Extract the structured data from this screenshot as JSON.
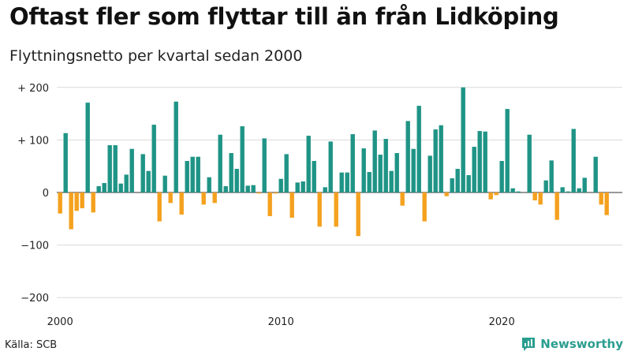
{
  "header": {
    "title": "Oftast fler som flyttar till än från Lidköping",
    "subtitle": "Flyttningsnetto per kvartal sedan 2000"
  },
  "footer": {
    "source": "Källa: SCB",
    "brand": "Newsworthy"
  },
  "colors": {
    "positive": "#1f9486",
    "negative": "#f4a11e",
    "grid": "#d9d9d9",
    "brand": "#2a9d8f"
  },
  "chart_data": {
    "type": "bar",
    "title": "Oftast fler som flyttar till än från Lidköping",
    "subtitle": "Flyttningsnetto per kvartal sedan 2000",
    "x_start": "2000 Q1",
    "x_ticks": [
      "2000",
      "2010",
      "2020"
    ],
    "y_ticks": [
      {
        "value": 200,
        "label": "+ 200"
      },
      {
        "value": 100,
        "label": "+ 100"
      },
      {
        "value": 0,
        "label": "0"
      },
      {
        "value": -100,
        "label": "−100"
      },
      {
        "value": -200,
        "label": "−200"
      }
    ],
    "ylim": [
      -200,
      200
    ],
    "grid": true,
    "values": [
      -40,
      113,
      -70,
      -35,
      -30,
      171,
      -38,
      12,
      18,
      90,
      90,
      17,
      34,
      83,
      0,
      73,
      41,
      129,
      -55,
      32,
      -20,
      173,
      -42,
      60,
      68,
      68,
      -23,
      29,
      -20,
      110,
      12,
      75,
      45,
      126,
      13,
      14,
      -2,
      103,
      -45,
      -2,
      26,
      73,
      -48,
      19,
      21,
      108,
      60,
      -65,
      10,
      97,
      -65,
      38,
      38,
      111,
      -83,
      84,
      39,
      118,
      72,
      102,
      41,
      75,
      -25,
      136,
      83,
      165,
      -55,
      70,
      120,
      128,
      -7,
      27,
      45,
      200,
      33,
      87,
      117,
      116,
      -13,
      -5,
      60,
      159,
      8,
      2,
      0,
      110,
      -15,
      -23,
      23,
      61,
      -52,
      10,
      2,
      121,
      8,
      28,
      0,
      68,
      -23,
      -43
    ]
  }
}
